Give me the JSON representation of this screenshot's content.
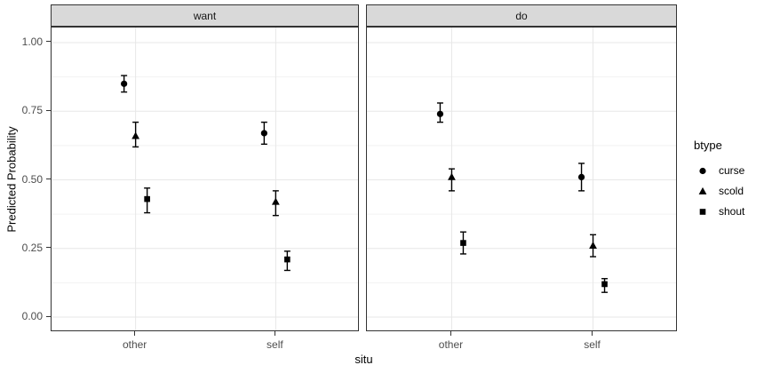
{
  "colors": {
    "points": "#000000",
    "strip_fill": "#d9d9d9",
    "strip_border": "#333333",
    "panel_border": "#333333",
    "grid_major": "#e7e7e7",
    "grid_minor": "#f2f2f2",
    "axis_text": "#4d4d4d",
    "tick_mark": "#333333"
  },
  "chart_data": {
    "type": "scatter",
    "subtype": "dodged-point-estimates-with-error-bars-faceted",
    "title": "",
    "xlabel": "situ",
    "ylabel": "Predicted Probability",
    "facets": [
      "want",
      "do"
    ],
    "categories": [
      "other",
      "self"
    ],
    "y_ticks": [
      0.0,
      0.25,
      0.5,
      0.75,
      1.0
    ],
    "y_tick_labels": [
      "0.00",
      "0.25",
      "0.50",
      "0.75",
      "1.00"
    ],
    "y_minor_ticks": [
      0.125,
      0.375,
      0.625,
      0.875
    ],
    "ylim": [
      -0.055,
      1.055
    ],
    "grid": "major-and-minor-horizontal, major-vertical",
    "legend": {
      "title": "btype",
      "position": "right"
    },
    "series": [
      {
        "name": "curse",
        "shape": "circle",
        "values": [
          {
            "facet": "want",
            "x": "other",
            "est": 0.85,
            "lo": 0.82,
            "hi": 0.88
          },
          {
            "facet": "want",
            "x": "self",
            "est": 0.67,
            "lo": 0.63,
            "hi": 0.71
          },
          {
            "facet": "do",
            "x": "other",
            "est": 0.74,
            "lo": 0.71,
            "hi": 0.78
          },
          {
            "facet": "do",
            "x": "self",
            "est": 0.51,
            "lo": 0.46,
            "hi": 0.56
          }
        ]
      },
      {
        "name": "scold",
        "shape": "triangle",
        "values": [
          {
            "facet": "want",
            "x": "other",
            "est": 0.66,
            "lo": 0.62,
            "hi": 0.71
          },
          {
            "facet": "want",
            "x": "self",
            "est": 0.42,
            "lo": 0.37,
            "hi": 0.46
          },
          {
            "facet": "do",
            "x": "other",
            "est": 0.51,
            "lo": 0.46,
            "hi": 0.54
          },
          {
            "facet": "do",
            "x": "self",
            "est": 0.26,
            "lo": 0.22,
            "hi": 0.3
          }
        ]
      },
      {
        "name": "shout",
        "shape": "square",
        "values": [
          {
            "facet": "want",
            "x": "other",
            "est": 0.43,
            "lo": 0.38,
            "hi": 0.47
          },
          {
            "facet": "want",
            "x": "self",
            "est": 0.21,
            "lo": 0.17,
            "hi": 0.24
          },
          {
            "facet": "do",
            "x": "other",
            "est": 0.27,
            "lo": 0.23,
            "hi": 0.31
          },
          {
            "facet": "do",
            "x": "self",
            "est": 0.12,
            "lo": 0.09,
            "hi": 0.14
          }
        ]
      }
    ]
  }
}
